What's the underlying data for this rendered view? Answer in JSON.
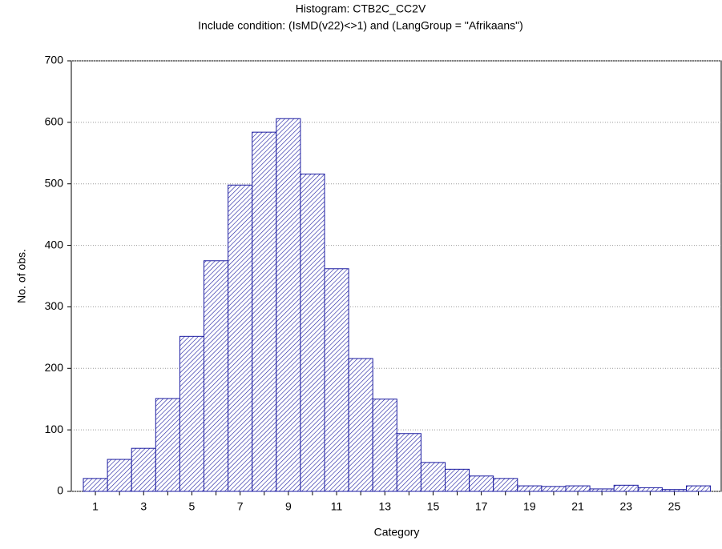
{
  "chart_data": {
    "type": "bar",
    "title": "Histogram: CTB2C_CC2V",
    "subtitle": "Include condition: (IsMD(v22)<>1) and (LangGroup = \"Afrikaans\")",
    "x_label": "Category",
    "y_label": "No. of obs.",
    "categories": [
      "1",
      null,
      "3",
      null,
      "5",
      null,
      "7",
      null,
      "9",
      null,
      "11",
      null,
      "13",
      null,
      "15",
      null,
      "17",
      null,
      "19",
      null,
      "21",
      null,
      "23",
      null,
      "25",
      null
    ],
    "values": [
      21,
      52,
      70,
      151,
      252,
      375,
      498,
      584,
      606,
      516,
      362,
      216,
      150,
      94,
      47,
      36,
      25,
      21,
      9,
      8,
      9,
      4,
      10,
      6,
      3,
      9
    ],
    "color": "#1a1aa0",
    "ylim": [
      0,
      700
    ],
    "yticks": [
      0,
      100,
      200,
      300,
      400,
      500,
      600,
      700
    ],
    "grid": true
  }
}
